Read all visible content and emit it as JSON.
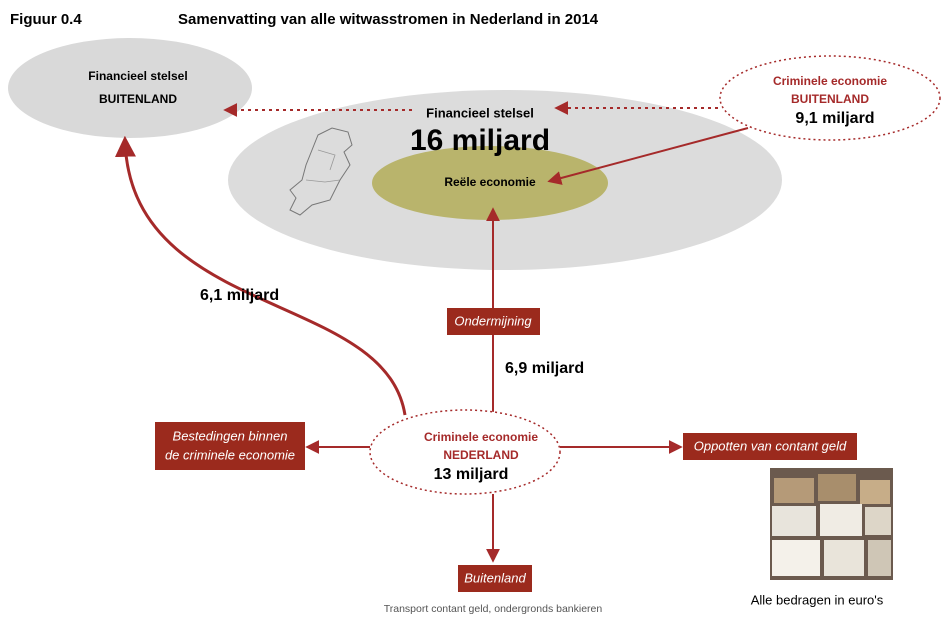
{
  "header": {
    "figure": "Figuur 0.4",
    "title": "Samenvatting van alle witwasstromen in Nederland in 2014"
  },
  "nodes": {
    "financial_abroad": {
      "line1": "Financieel stelsel",
      "line2": "BUITENLAND"
    },
    "criminal_abroad": {
      "line1": "Criminele economie",
      "line2": "BUITENLAND",
      "amount": "9,1 miljard"
    },
    "financial_system": {
      "label": "Financieel stelsel",
      "amount": "16 miljard"
    },
    "real_economy": {
      "label": "Reële economie"
    },
    "criminal_nl": {
      "line1": "Criminele economie",
      "line2": "NEDERLAND",
      "amount": "13 miljard"
    },
    "spending": {
      "line1": "Bestedingen binnen",
      "line2": "de criminele economie"
    },
    "hoarding": {
      "label": "Oppotten van contant geld"
    },
    "abroad": {
      "label": "Buitenland",
      "caption": "Transport contant geld, ondergronds bankieren"
    },
    "undermining": {
      "label": "Ondermijning"
    }
  },
  "flows": {
    "to_financial_abroad": "6,1 miljard",
    "to_real_economy": "6,9 miljard"
  },
  "footnote": "Alle bedragen in euro's"
}
